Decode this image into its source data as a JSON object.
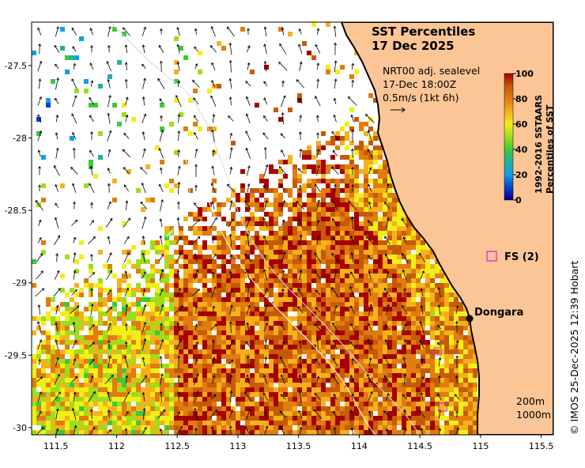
{
  "title": {
    "line1": "SST Percentiles",
    "line2": "17 Dec 2025"
  },
  "currents": {
    "line1": "NRT00 adj. sealevel",
    "line2": "17-Dec 18:00Z",
    "line3": "0.5m/s (1kt 6h)"
  },
  "colorbar": {
    "label_line1": "1992-2016 SSTAARS",
    "label_line2": "Percentiles of SST",
    "ticks": [
      "100",
      "80",
      "60",
      "40",
      "20",
      "0"
    ],
    "colors": [
      "#00007f",
      "#0a3dd6",
      "#12a0e0",
      "#22b0a0",
      "#3cc83c",
      "#9fdc1c",
      "#f2ee1a",
      "#f5b11c",
      "#e07c10",
      "#c65a06",
      "#a60000"
    ]
  },
  "places": {
    "dongara": "Dongara",
    "fs": "FS (2)"
  },
  "contours": {
    "c200": "200m",
    "c1000": "1000m"
  },
  "axes": {
    "x_ticks": [
      "111.5",
      "112",
      "112.5",
      "113",
      "113.5",
      "114",
      "114.5",
      "115",
      "115.5"
    ],
    "y_ticks": [
      "-27.5",
      "-28",
      "-28.5",
      "-29",
      "-29.5",
      "-30"
    ],
    "xlim": [
      111.3,
      115.6
    ],
    "ylim": [
      -30.05,
      -27.2
    ]
  },
  "credit": "© IMOS 25-Dec-2025 12:39 Hobart",
  "colors": {
    "land": "#fbc596",
    "coastline": "#000000",
    "no_data": "#ffffff"
  }
}
